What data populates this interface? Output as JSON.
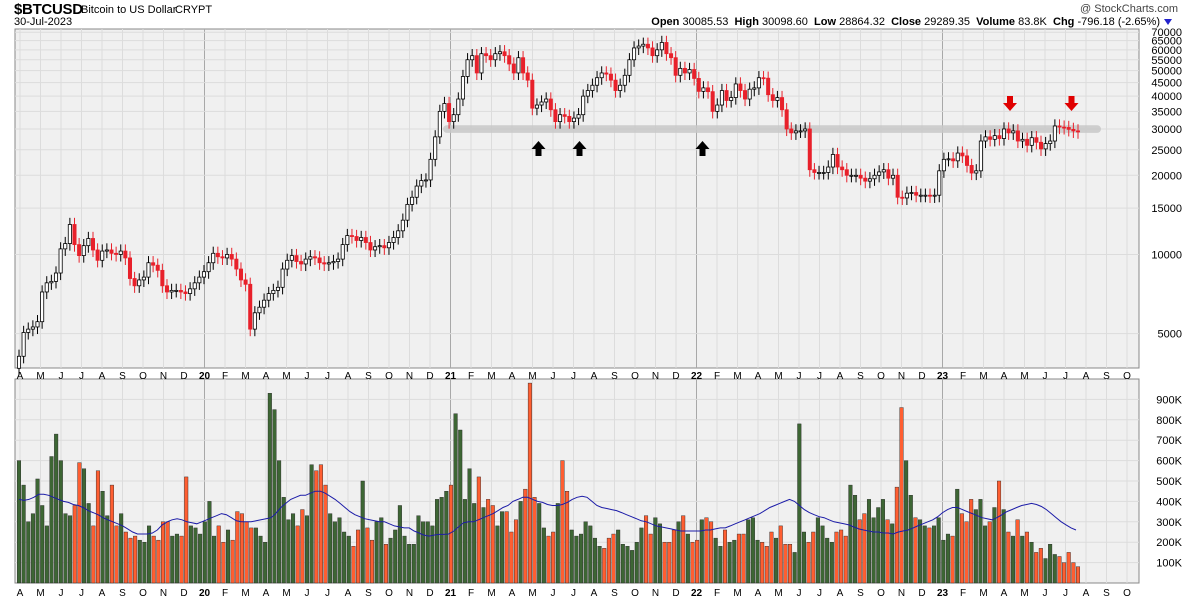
{
  "header": {
    "symbol": "$BTCUSD",
    "name": "Bitcoin to US Dollar",
    "exchange": "CRYPT",
    "date": "30-Jul-2023",
    "watermark": "@ StockCharts.com",
    "open_label": "Open",
    "open": "30085.53",
    "high_label": "High",
    "high": "30098.60",
    "low_label": "Low",
    "low": "28864.32",
    "close_label": "Close",
    "close": "29289.35",
    "volume_label": "Volume",
    "volume": "83.8K",
    "chg_label": "Chg",
    "chg": "-796.18 (-2.65%)"
  },
  "colors": {
    "up": "#ffffff",
    "down": "#e8212b",
    "panel_bg": "#f0f0f0",
    "vol_up": "#3d6634",
    "vol_down": "#ff5e31",
    "ma": "#1c1ca8",
    "zone": "#c8c8c8",
    "arrow_up": "#000000",
    "arrow_down": "#e00000"
  },
  "chart_data": [
    {
      "type": "candlestick",
      "title": "$BTCUSD Bitcoin to US Dollar CRYPT",
      "scale": "log",
      "ylim": [
        3700,
        72000
      ],
      "y_ticks": [
        5000,
        10000,
        15000,
        20000,
        25000,
        30000,
        35000,
        40000,
        45000,
        50000,
        55000,
        60000,
        65000,
        70000
      ],
      "y_tick_labels": [
        "5000",
        "10000",
        "15000",
        "20000",
        "25000",
        "30000",
        "35000",
        "40000",
        "45000",
        "50000",
        "55000",
        "60000",
        "65000",
        "70000"
      ],
      "x_tick_labels": [
        "A",
        "M",
        "J",
        "J",
        "A",
        "S",
        "O",
        "N",
        "D",
        "20",
        "F",
        "M",
        "A",
        "M",
        "J",
        "J",
        "A",
        "S",
        "O",
        "N",
        "D",
        "21",
        "F",
        "M",
        "A",
        "M",
        "J",
        "J",
        "A",
        "S",
        "O",
        "N",
        "D",
        "22",
        "F",
        "M",
        "A",
        "M",
        "J",
        "J",
        "A",
        "S",
        "O",
        "N",
        "D",
        "23",
        "F",
        "M",
        "A",
        "M",
        "J",
        "J",
        "A",
        "S",
        "O"
      ],
      "year_labels": [
        "20",
        "21",
        "22",
        "23"
      ],
      "frequency": "weekly",
      "x_range": [
        "2019-04",
        "2023-10"
      ],
      "weekly_close": [
        4100,
        5050,
        5200,
        5300,
        5550,
        7200,
        7800,
        7900,
        8500,
        10500,
        11000,
        13000,
        10900,
        9900,
        10800,
        11500,
        10400,
        9500,
        10300,
        10400,
        10100,
        10000,
        10300,
        9700,
        8100,
        7600,
        8000,
        8200,
        9300,
        9100,
        8700,
        7600,
        7200,
        7300,
        7300,
        7200,
        7100,
        7400,
        7800,
        8200,
        8600,
        9300,
        10100,
        9800,
        9700,
        10000,
        9600,
        8800,
        8000,
        7700,
        5200,
        6000,
        6300,
        6700,
        7100,
        7300,
        7500,
        8800,
        9500,
        9900,
        9400,
        9200,
        9600,
        9800,
        9700,
        9300,
        9200,
        9300,
        9400,
        9600,
        10900,
        11800,
        11700,
        11300,
        11600,
        11100,
        10400,
        10700,
        10800,
        10600,
        11100,
        11600,
        12300,
        13500,
        15500,
        16500,
        18200,
        19100,
        19200,
        23000,
        28000,
        35000,
        37500,
        32000,
        34000,
        39000,
        47500,
        55000,
        57000,
        49000,
        58000,
        57000,
        55000,
        58000,
        59000,
        57000,
        53000,
        49000,
        56000,
        49000,
        46000,
        36000,
        37000,
        38000,
        39000,
        35500,
        32000,
        34000,
        33500,
        32000,
        33000,
        34000,
        40000,
        42000,
        44000,
        47000,
        49000,
        48500,
        46000,
        42000,
        44000,
        48000,
        55000,
        61000,
        62000,
        63000,
        61000,
        57000,
        60000,
        64000,
        58000,
        56000,
        48000,
        51000,
        49000,
        50500,
        46700,
        41700,
        43000,
        41600,
        35000,
        37000,
        42000,
        38500,
        39500,
        44500,
        42000,
        39000,
        42500,
        43000,
        47000,
        46800,
        40500,
        38500,
        39500,
        35500,
        30000,
        29000,
        29500,
        29500,
        30000,
        21000,
        20500,
        20500,
        20500,
        21500,
        24000,
        21500,
        21000,
        20000,
        20000,
        20000,
        19500,
        19000,
        19400,
        20000,
        20600,
        21000,
        19500,
        20000,
        16500,
        16400,
        17100,
        17200,
        16800,
        16800,
        16800,
        16700,
        16800,
        20800,
        23000,
        23100,
        22700,
        24300,
        23700,
        21800,
        20400,
        20800,
        27000,
        28000,
        27400,
        28300,
        27600,
        30000,
        29000,
        29500,
        27000,
        27400,
        26000,
        27800,
        26700,
        25200,
        26400,
        27000,
        30800,
        30500,
        30400,
        29900,
        29500,
        29300
      ],
      "support_zone": [
        29000,
        31000
      ],
      "annotations": [
        {
          "type": "up-arrow",
          "date": "2021-05"
        },
        {
          "type": "up-arrow",
          "date": "2021-07"
        },
        {
          "type": "up-arrow",
          "date": "2022-01"
        },
        {
          "type": "down-arrow",
          "date": "2023-04"
        },
        {
          "type": "down-arrow",
          "date": "2023-07"
        }
      ]
    },
    {
      "type": "bar",
      "title": "Volume",
      "ylim": [
        0,
        1000
      ],
      "y_ticks": [
        100,
        200,
        300,
        400,
        500,
        600,
        700,
        800,
        900
      ],
      "y_tick_labels": [
        "100K",
        "200K",
        "300K",
        "400K",
        "500K",
        "600K",
        "700K",
        "800K",
        "900K"
      ],
      "x_tick_labels": [
        "A",
        "M",
        "J",
        "J",
        "A",
        "S",
        "O",
        "N",
        "D",
        "20",
        "F",
        "M",
        "A",
        "M",
        "J",
        "J",
        "A",
        "S",
        "O",
        "N",
        "D",
        "21",
        "F",
        "M",
        "A",
        "M",
        "J",
        "J",
        "A",
        "S",
        "O",
        "N",
        "D",
        "22",
        "F",
        "M",
        "A",
        "M",
        "J",
        "J",
        "A",
        "S",
        "O",
        "N",
        "D",
        "23",
        "F",
        "M",
        "A",
        "M",
        "J",
        "J",
        "A",
        "S",
        "O"
      ],
      "series": [
        {
          "values": [
            600,
            480,
            300,
            340,
            510,
            380,
            280,
            620,
            730,
            600,
            340,
            330,
            380,
            590,
            560,
            390,
            280,
            550,
            450,
            330,
            480,
            280,
            340,
            250,
            220,
            230,
            210,
            200,
            280,
            230,
            210,
            300,
            300,
            230,
            240,
            230,
            520,
            280,
            270,
            240,
            300,
            400,
            230,
            280,
            200,
            260,
            210,
            350,
            340,
            300,
            270,
            270,
            230,
            200,
            930,
            850,
            600,
            420,
            310,
            340,
            280,
            360,
            330,
            580,
            550,
            580,
            480,
            340,
            300,
            320,
            250,
            230,
            180,
            260,
            500,
            270,
            210,
            300,
            320,
            190,
            220,
            260,
            380,
            230,
            190,
            190,
            330,
            300,
            300,
            280,
            410,
            420,
            450,
            480,
            830,
            750,
            410,
            560,
            390,
            520,
            370,
            410,
            380,
            280,
            350,
            350,
            250,
            310,
            400,
            460,
            980,
            420,
            390,
            270,
            230,
            250,
            390,
            600,
            450,
            260,
            230,
            240,
            300,
            280,
            220,
            180,
            170,
            220,
            240,
            260,
            190,
            180,
            160,
            200,
            270,
            330,
            240,
            320,
            290,
            200,
            200,
            260,
            300,
            330,
            240,
            200,
            210,
            310,
            320,
            300,
            220,
            180,
            260,
            200,
            210,
            240,
            240,
            310,
            320,
            210,
            200,
            180,
            250,
            220,
            280,
            190,
            190,
            150,
            780,
            250,
            200,
            250,
            320,
            280,
            220,
            200,
            250,
            260,
            230,
            480,
            430,
            310,
            340,
            410,
            320,
            370,
            410,
            310,
            290,
            470,
            860,
            600,
            430,
            320,
            310,
            280,
            270,
            280,
            320,
            210,
            240,
            230,
            460,
            340,
            300,
            410,
            360,
            410,
            280,
            300,
            370,
            500,
            360,
            250,
            230,
            310,
            230,
            250,
            200,
            150,
            170,
            120,
            190,
            140,
            130,
            100,
            150,
            100,
            80
          ]
        },
        {
          "name": "MA",
          "values": [
            410,
            405,
            410,
            420,
            435,
            435,
            430,
            420,
            410,
            400,
            395,
            385,
            380,
            370,
            355,
            345,
            335,
            320,
            310,
            300,
            290,
            280,
            265,
            250,
            240,
            240,
            240,
            245,
            260,
            285,
            300,
            310,
            315,
            310,
            300,
            295,
            290,
            300,
            310,
            320,
            330,
            340,
            335,
            320,
            305,
            300,
            300,
            300,
            305,
            310,
            315,
            320,
            340,
            370,
            390,
            410,
            420,
            430,
            430,
            440,
            450,
            450,
            440,
            425,
            410,
            390,
            370,
            350,
            335,
            325,
            315,
            310,
            305,
            300,
            300,
            290,
            280,
            275,
            270,
            270,
            255,
            245,
            235,
            230,
            235,
            238,
            238,
            240,
            255,
            275,
            295,
            300,
            300,
            310,
            320,
            330,
            340,
            355,
            370,
            380,
            400,
            410,
            420,
            420,
            410,
            400,
            395,
            385,
            380,
            380,
            385,
            395,
            410,
            420,
            425,
            420,
            400,
            380,
            370,
            365,
            360,
            355,
            345,
            335,
            325,
            315,
            305,
            300,
            290,
            280,
            275,
            270,
            265,
            260,
            255,
            255,
            255,
            255,
            255,
            260,
            260,
            265,
            270,
            270,
            280,
            290,
            300,
            310,
            320,
            330,
            340,
            355,
            370,
            380,
            390,
            400,
            410,
            400,
            380,
            360,
            345,
            335,
            325,
            320,
            310,
            300,
            295,
            290,
            285,
            275,
            265,
            260,
            255,
            250,
            250,
            245,
            245,
            240,
            250,
            255,
            260,
            270,
            280,
            290,
            300,
            310,
            325,
            345,
            360,
            370,
            370,
            360,
            350,
            340,
            330,
            320,
            315,
            310,
            320,
            335,
            350,
            360,
            370,
            380,
            385,
            390,
            385,
            375,
            360,
            340,
            320,
            300,
            285,
            270,
            260
          ]
        }
      ]
    }
  ]
}
